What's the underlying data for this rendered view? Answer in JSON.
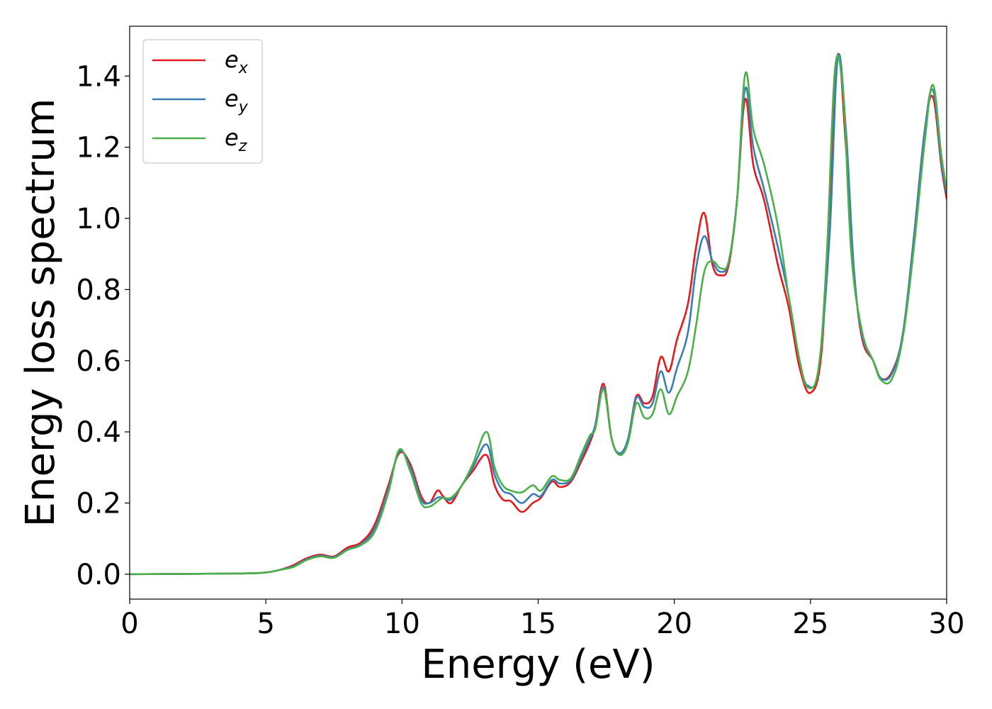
{
  "chart_data": {
    "type": "line",
    "xlabel": "Energy (eV)",
    "ylabel": "Energy loss spectrum",
    "xlim": [
      0,
      30
    ],
    "ylim": [
      -0.07,
      1.54
    ],
    "xticks": [
      0,
      5,
      10,
      15,
      20,
      25,
      30
    ],
    "xtick_labels": [
      "0",
      "5",
      "10",
      "15",
      "20",
      "25",
      "30"
    ],
    "yticks": [
      0.0,
      0.2,
      0.4,
      0.6,
      0.8,
      1.0,
      1.2,
      1.4
    ],
    "ytick_labels": [
      "0.0",
      "0.2",
      "0.4",
      "0.6",
      "0.8",
      "1.0",
      "1.2",
      "1.4"
    ],
    "grid": false,
    "legend_position": "top-left",
    "series": [
      {
        "name": "e",
        "subscript": "x",
        "color": "#e41a1c",
        "x": [
          0,
          4,
          5,
          5.5,
          6,
          6.5,
          7,
          7.5,
          8,
          8.5,
          9,
          9.5,
          9.9,
          10.3,
          10.7,
          11,
          11.3,
          11.5,
          11.8,
          12.2,
          12.6,
          13.1,
          13.4,
          13.7,
          14.0,
          14.4,
          14.8,
          15.1,
          15.5,
          15.8,
          16.2,
          16.6,
          16.9,
          17.1,
          17.4,
          17.7,
          18.0,
          18.3,
          18.6,
          18.9,
          19.2,
          19.5,
          19.8,
          20.1,
          20.5,
          20.8,
          21.1,
          21.4,
          21.7,
          22.0,
          22.3,
          22.6,
          22.9,
          23.3,
          23.8,
          24.2,
          24.6,
          25.0,
          25.4,
          25.7,
          26.0,
          26.3,
          26.6,
          26.9,
          27.3,
          27.6,
          28.0,
          28.4,
          28.8,
          29.2,
          29.5,
          29.8,
          30
        ],
        "y": [
          0.0,
          0.002,
          0.005,
          0.012,
          0.025,
          0.045,
          0.055,
          0.05,
          0.075,
          0.09,
          0.14,
          0.25,
          0.34,
          0.31,
          0.22,
          0.2,
          0.235,
          0.22,
          0.2,
          0.25,
          0.29,
          0.335,
          0.25,
          0.21,
          0.205,
          0.175,
          0.2,
          0.215,
          0.26,
          0.245,
          0.26,
          0.32,
          0.37,
          0.42,
          0.535,
          0.38,
          0.34,
          0.38,
          0.5,
          0.48,
          0.5,
          0.61,
          0.57,
          0.66,
          0.76,
          0.92,
          1.015,
          0.87,
          0.84,
          0.87,
          1.05,
          1.335,
          1.15,
          1.05,
          0.87,
          0.75,
          0.58,
          0.51,
          0.62,
          1.05,
          1.46,
          1.2,
          0.85,
          0.66,
          0.6,
          0.55,
          0.57,
          0.68,
          0.95,
          1.25,
          1.34,
          1.15,
          1.055
        ]
      },
      {
        "name": "e",
        "subscript": "y",
        "color": "#377eb8",
        "x": [
          0,
          4,
          5,
          5.5,
          6,
          6.5,
          7,
          7.5,
          8,
          8.5,
          9,
          9.5,
          9.9,
          10.3,
          10.7,
          11,
          11.3,
          11.5,
          11.8,
          12.2,
          12.6,
          13.1,
          13.4,
          13.7,
          14.0,
          14.4,
          14.8,
          15.1,
          15.5,
          15.8,
          16.2,
          16.6,
          16.9,
          17.1,
          17.4,
          17.7,
          18.0,
          18.3,
          18.6,
          18.9,
          19.2,
          19.5,
          19.8,
          20.1,
          20.5,
          20.8,
          21.1,
          21.4,
          21.7,
          22.0,
          22.3,
          22.6,
          22.9,
          23.3,
          23.8,
          24.2,
          24.6,
          24.9,
          25.3,
          25.7,
          26.0,
          26.3,
          26.6,
          26.9,
          27.3,
          27.6,
          28.0,
          28.4,
          28.8,
          29.2,
          29.5,
          29.8,
          30
        ],
        "y": [
          0.0,
          0.002,
          0.005,
          0.012,
          0.022,
          0.042,
          0.052,
          0.048,
          0.07,
          0.085,
          0.13,
          0.24,
          0.345,
          0.3,
          0.21,
          0.2,
          0.215,
          0.215,
          0.21,
          0.25,
          0.3,
          0.365,
          0.28,
          0.235,
          0.225,
          0.2,
          0.225,
          0.22,
          0.265,
          0.255,
          0.265,
          0.33,
          0.38,
          0.42,
          0.525,
          0.38,
          0.34,
          0.38,
          0.495,
          0.47,
          0.48,
          0.57,
          0.51,
          0.58,
          0.68,
          0.86,
          0.95,
          0.88,
          0.85,
          0.88,
          1.05,
          1.365,
          1.2,
          1.08,
          0.92,
          0.78,
          0.6,
          0.53,
          0.58,
          0.95,
          1.45,
          1.25,
          0.85,
          0.67,
          0.6,
          0.55,
          0.565,
          0.68,
          0.95,
          1.25,
          1.36,
          1.16,
          1.07
        ]
      },
      {
        "name": "e",
        "subscript": "z",
        "color": "#4daf4a",
        "x": [
          0,
          4,
          5,
          5.5,
          6,
          6.5,
          7,
          7.5,
          8,
          8.5,
          9,
          9.5,
          9.9,
          10.3,
          10.7,
          11,
          11.3,
          11.5,
          11.8,
          12.2,
          12.6,
          13.1,
          13.4,
          13.7,
          14.0,
          14.4,
          14.8,
          15.1,
          15.5,
          15.8,
          16.2,
          16.6,
          16.9,
          17.1,
          17.4,
          17.7,
          18.0,
          18.3,
          18.6,
          18.9,
          19.2,
          19.5,
          19.8,
          20.1,
          20.5,
          20.8,
          21.1,
          21.4,
          21.7,
          22.0,
          22.3,
          22.6,
          22.9,
          23.3,
          23.8,
          24.2,
          24.6,
          24.9,
          25.3,
          25.6,
          25.9,
          26.2,
          26.5,
          26.9,
          27.3,
          27.6,
          28.0,
          28.4,
          28.8,
          29.2,
          29.5,
          29.8,
          30
        ],
        "y": [
          0.0,
          0.002,
          0.005,
          0.012,
          0.02,
          0.04,
          0.05,
          0.046,
          0.068,
          0.082,
          0.12,
          0.23,
          0.35,
          0.29,
          0.2,
          0.19,
          0.205,
          0.215,
          0.215,
          0.25,
          0.31,
          0.4,
          0.3,
          0.25,
          0.235,
          0.23,
          0.25,
          0.235,
          0.275,
          0.265,
          0.27,
          0.34,
          0.39,
          0.41,
          0.52,
          0.38,
          0.335,
          0.37,
          0.48,
          0.44,
          0.45,
          0.52,
          0.45,
          0.5,
          0.57,
          0.7,
          0.85,
          0.88,
          0.86,
          0.88,
          1.05,
          1.405,
          1.25,
          1.15,
          0.98,
          0.78,
          0.6,
          0.525,
          0.58,
          0.9,
          1.42,
          1.35,
          0.9,
          0.68,
          0.6,
          0.545,
          0.55,
          0.67,
          0.92,
          1.22,
          1.375,
          1.18,
          1.08
        ]
      }
    ]
  }
}
